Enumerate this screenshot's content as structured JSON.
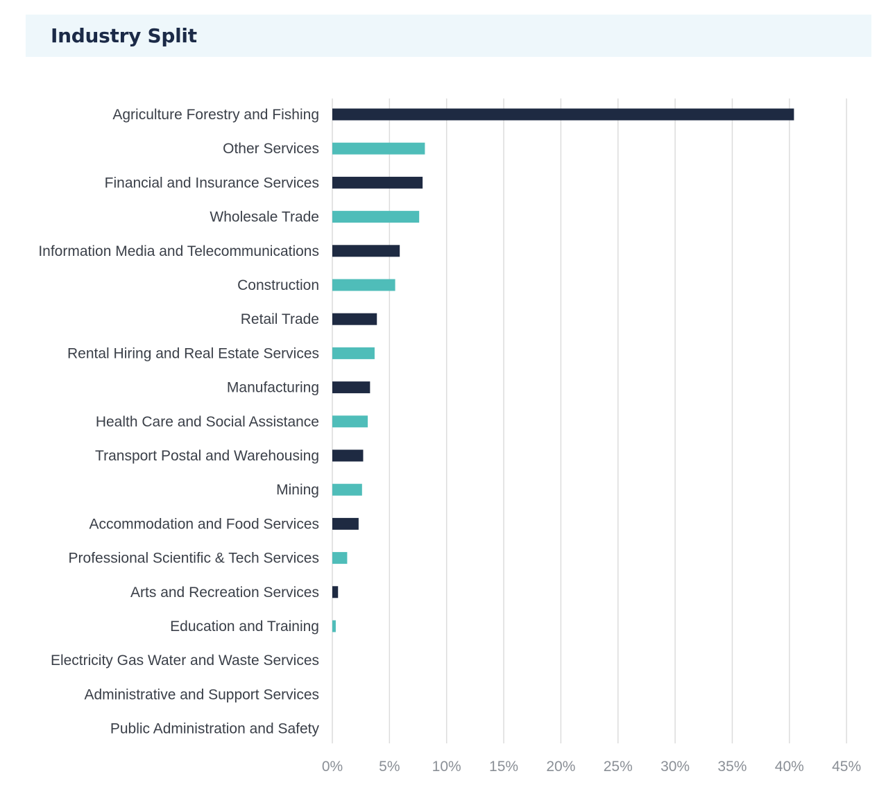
{
  "header": {
    "title": "Industry Split"
  },
  "colors": {
    "dark": "#1e2a42",
    "teal": "#4fbdb9",
    "grid": "#dcdcdc",
    "header_bg": "#eef7fb"
  },
  "chart_data": {
    "type": "bar",
    "orientation": "horizontal",
    "title": "Industry Split",
    "xlabel": "",
    "ylabel": "",
    "xlim": [
      0,
      45
    ],
    "grid": "vertical",
    "tick_values": [
      0,
      5,
      10,
      15,
      20,
      25,
      30,
      35,
      40,
      45
    ],
    "tick_labels": [
      "0%",
      "5%",
      "10%",
      "15%",
      "20%",
      "25%",
      "30%",
      "35%",
      "40%",
      "45%"
    ],
    "categories": [
      "Agriculture Forestry and Fishing",
      "Other Services",
      "Financial and Insurance Services",
      "Wholesale Trade",
      "Information Media and Telecommunications",
      "Construction",
      "Retail Trade",
      "Rental Hiring and Real Estate Services",
      "Manufacturing",
      "Health Care and Social Assistance",
      "Transport Postal and Warehousing",
      "Mining",
      "Accommodation and Food Services",
      "Professional Scientific & Tech Services",
      "Arts and Recreation Services",
      "Education and Training",
      "Electricity Gas Water and Waste Services",
      "Administrative and Support Services",
      "Public Administration and Safety"
    ],
    "values": [
      40.4,
      8.1,
      7.9,
      7.6,
      5.9,
      5.5,
      3.9,
      3.7,
      3.3,
      3.1,
      2.7,
      2.6,
      2.3,
      1.3,
      0.5,
      0.3,
      0,
      0,
      0
    ],
    "bar_colors": [
      "dark",
      "teal",
      "dark",
      "teal",
      "dark",
      "teal",
      "dark",
      "teal",
      "dark",
      "teal",
      "dark",
      "teal",
      "dark",
      "teal",
      "dark",
      "teal",
      "dark",
      "teal",
      "dark"
    ]
  }
}
